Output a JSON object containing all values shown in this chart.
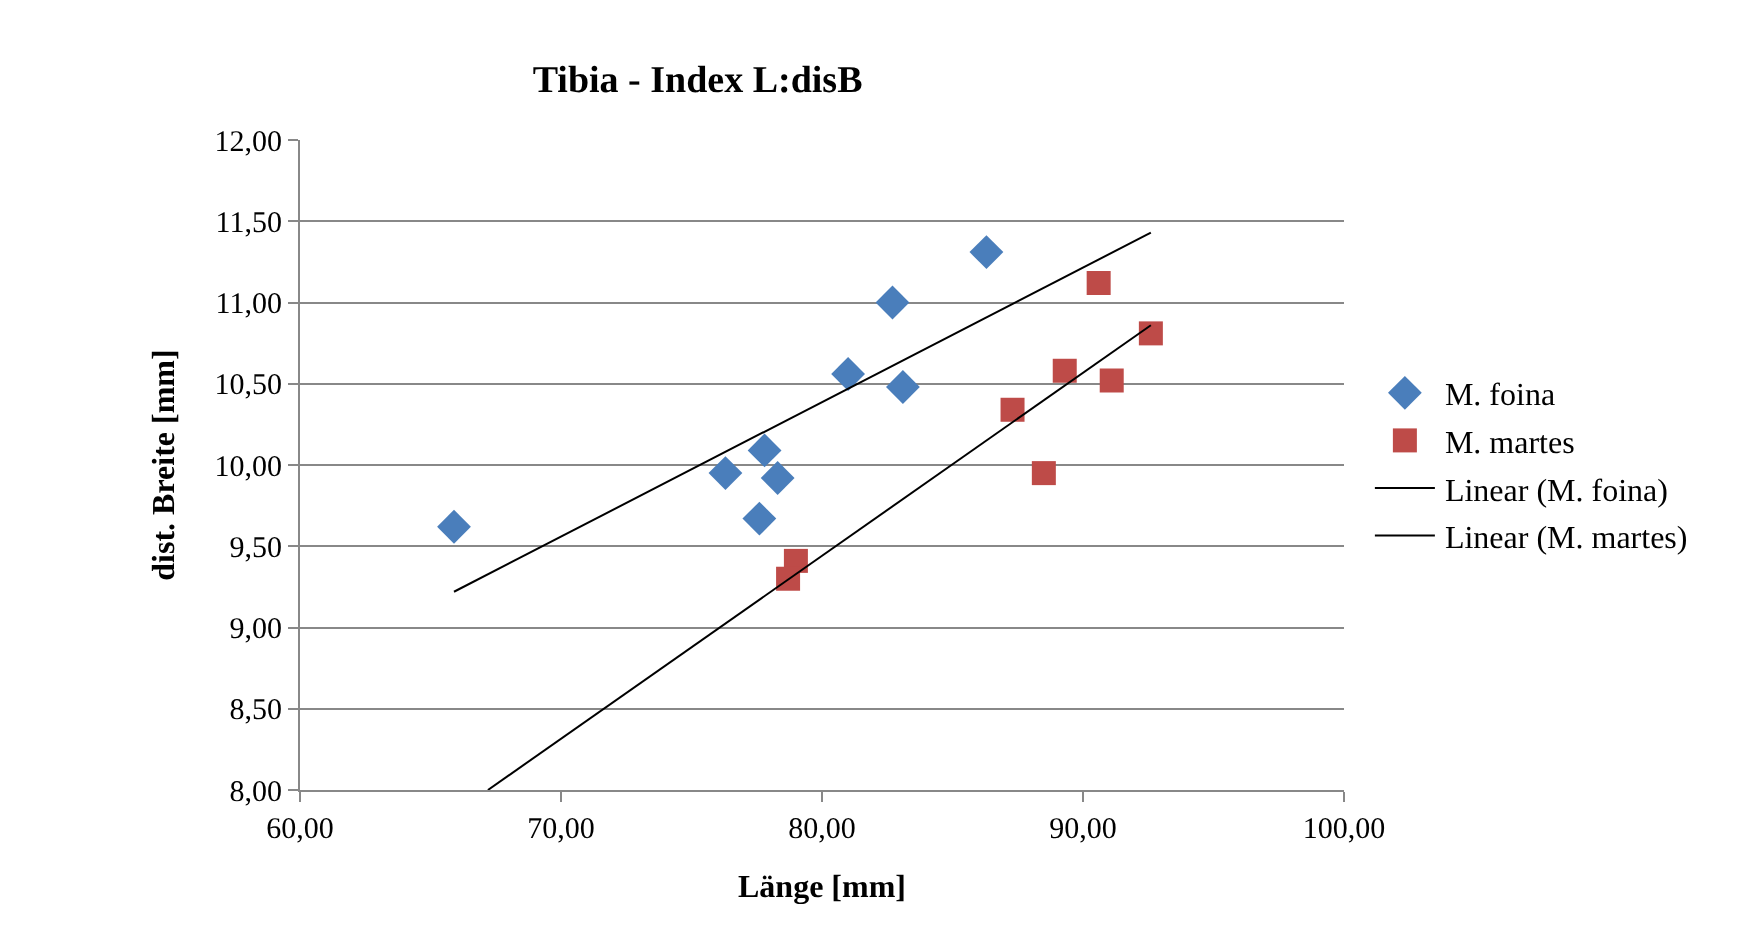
{
  "chart_data": {
    "type": "scatter",
    "title": "Tibia - Index L:disB",
    "xlabel": "Länge [mm]",
    "ylabel": "dist. Breite [mm]",
    "xlim": [
      60,
      100
    ],
    "xticks": [
      {
        "value": 60,
        "label": "60,00"
      },
      {
        "value": 70,
        "label": "70,00"
      },
      {
        "value": 80,
        "label": "80,00"
      },
      {
        "value": 90,
        "label": "90,00"
      },
      {
        "value": 100,
        "label": "100,00"
      }
    ],
    "ylim": [
      8,
      12
    ],
    "yticks": [
      {
        "value": 8,
        "label": "8,00"
      },
      {
        "value": 8.5,
        "label": "8,50"
      },
      {
        "value": 9,
        "label": "9,00"
      },
      {
        "value": 9.5,
        "label": "9,50"
      },
      {
        "value": 10,
        "label": "10,00"
      },
      {
        "value": 10.5,
        "label": "10,50"
      },
      {
        "value": 11,
        "label": "11,00"
      },
      {
        "value": 11.5,
        "label": "11,50"
      },
      {
        "value": 12,
        "label": "12,00"
      }
    ],
    "grid": "y",
    "legend": "right",
    "series": [
      {
        "name": "M. foina",
        "marker": "diamond",
        "color": "#4a7ebb",
        "x": [
          65.9,
          76.3,
          77.8,
          78.3,
          77.6,
          81.0,
          83.1,
          82.7,
          86.3
        ],
        "values": [
          9.62,
          9.95,
          10.09,
          9.92,
          9.67,
          10.56,
          10.48,
          11.0,
          11.31
        ]
      },
      {
        "name": "M. martes",
        "marker": "square",
        "color": "#be4b48",
        "x": [
          90.6,
          92.6,
          89.3,
          91.1,
          87.3,
          88.5,
          79.0,
          78.7
        ],
        "values": [
          11.12,
          10.81,
          10.58,
          10.52,
          10.34,
          9.95,
          9.41,
          9.3
        ]
      },
      {
        "name": "Linear (M. foina)",
        "type": "line",
        "marker": "none",
        "color": "#000000",
        "x": [
          65.9,
          92.6
        ],
        "values": [
          9.22,
          11.43
        ]
      },
      {
        "name": "Linear (M. martes)",
        "type": "line",
        "marker": "none",
        "color": "#000000",
        "x": [
          67.2,
          92.6
        ],
        "values": [
          8.0,
          10.86
        ]
      }
    ]
  }
}
